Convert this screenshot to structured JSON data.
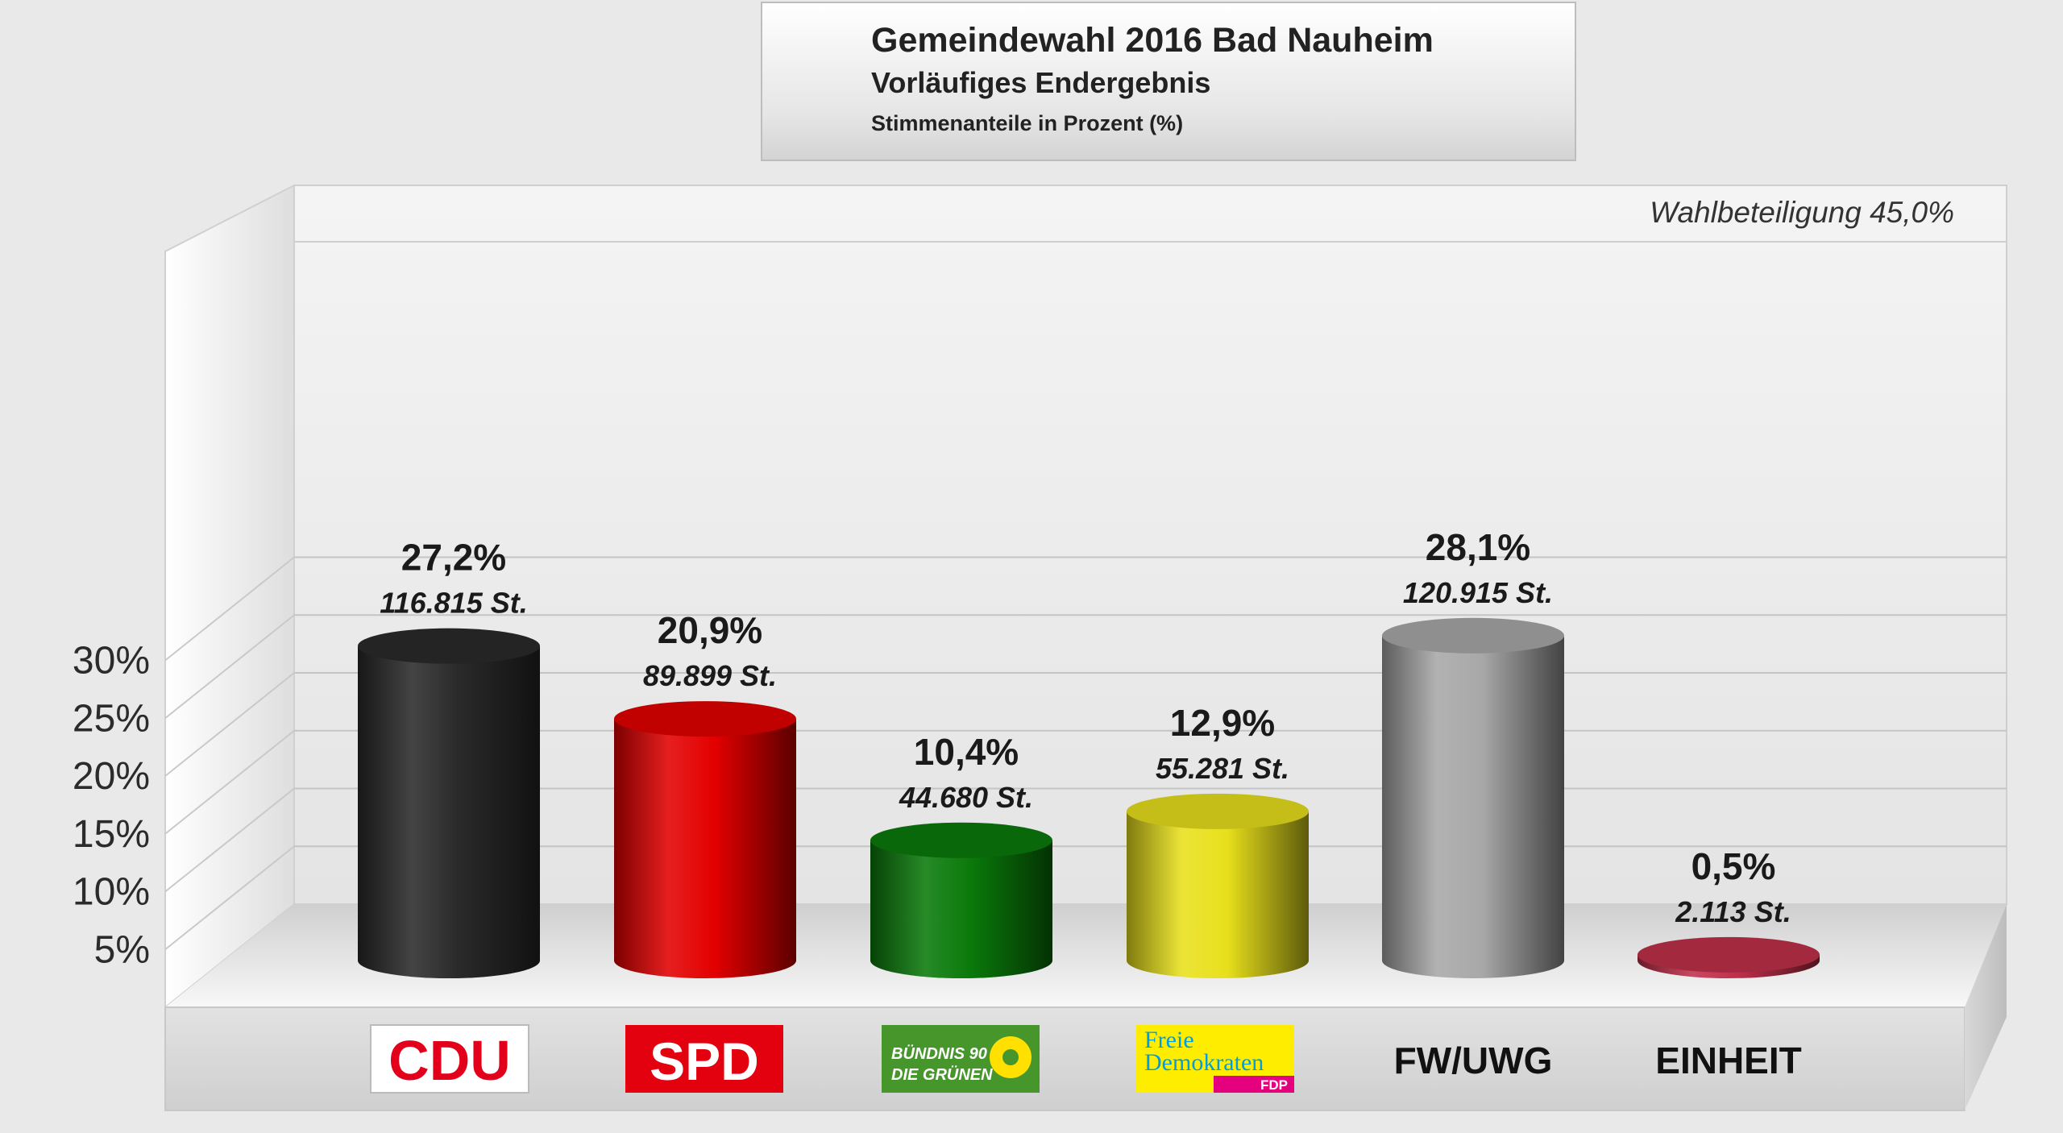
{
  "header": {
    "title": "Gemeindewahl 2016 Bad Nauheim",
    "subtitle": "Vorläufiges Endergebnis",
    "note": "Stimmenanteile in Prozent (%)"
  },
  "turnout_label": "Wahlbeteiligung 45,0%",
  "logos": {
    "cdu": "CDU",
    "spd": "SPD",
    "gruene_line1": "BÜNDNIS 90",
    "gruene_line2": "DIE GRÜNEN",
    "fdp_line1": "Freie",
    "fdp_line2": "Demokraten",
    "fdp_line3": "FDP"
  },
  "chart_data": {
    "type": "bar",
    "title": "Gemeindewahl 2016 Bad Nauheim",
    "subtitle": "Vorläufiges Endergebnis",
    "xlabel": "",
    "ylabel": "",
    "ylim": [
      0,
      32
    ],
    "yticks": [
      5,
      10,
      15,
      20,
      25,
      30
    ],
    "ytick_labels": [
      "5%",
      "10%",
      "15%",
      "20%",
      "25%",
      "30%"
    ],
    "grid": true,
    "categories": [
      "CDU",
      "SPD",
      "BÜNDNIS 90 DIE GRÜNEN",
      "FDP",
      "FW/UWG",
      "EINHEIT"
    ],
    "values": [
      27.2,
      20.9,
      10.4,
      12.9,
      28.1,
      0.5
    ],
    "value_labels": [
      "27,2%",
      "20,9%",
      "10,4%",
      "12,9%",
      "28,1%",
      "0,5%"
    ],
    "votes": [
      116815,
      89899,
      44680,
      55281,
      120915,
      2113
    ],
    "vote_labels": [
      "116.815 St.",
      "89.899 St.",
      "44.680 St.",
      "55.281 St.",
      "120.915 St.",
      "2.113 St."
    ],
    "colors": [
      "#2a2a2a",
      "#e30000",
      "#0a7a0a",
      "#e8e01c",
      "#a8a8a8",
      "#c0304a"
    ],
    "axis_labels": [
      "",
      "",
      "",
      "",
      "FW/UWG",
      "EINHEIT"
    ]
  }
}
